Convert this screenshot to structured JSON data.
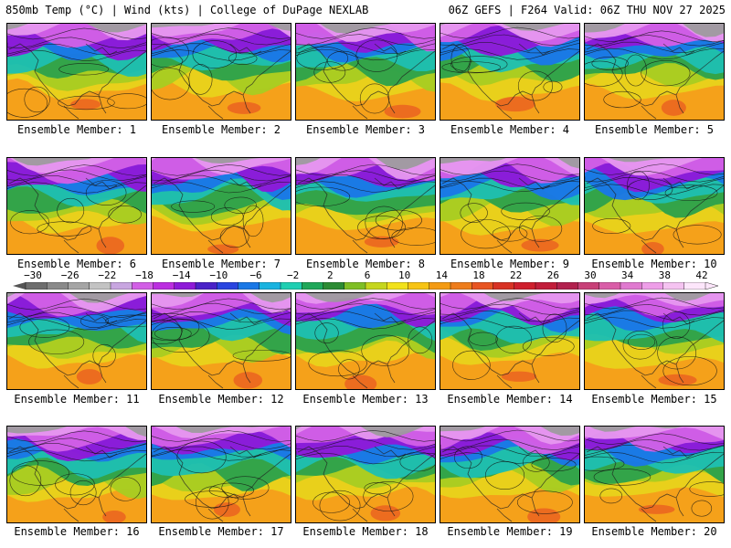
{
  "header": {
    "left_title": "850mb Temp (°C) | Wind (kts) | College of DuPage NEXLAB",
    "right_title": "06Z GEFS | F264 Valid: 06Z THU NOV 27 2025"
  },
  "colorbar": {
    "tick_labels": [
      "−30",
      "−26",
      "−22",
      "−18",
      "−14",
      "−10",
      "−6",
      "−2",
      "2",
      "6",
      "10",
      "14",
      "18",
      "22",
      "26",
      "30",
      "34",
      "38",
      "42"
    ],
    "colors": [
      "#6e6e6e",
      "#8a8a8a",
      "#a5a5a5",
      "#c3c3c3",
      "#c8a6e0",
      "#d25fe6",
      "#bb2ee0",
      "#8e1ad8",
      "#4a22c8",
      "#2a45e0",
      "#1a78e6",
      "#19b3e0",
      "#1fcfb2",
      "#20a85a",
      "#2c8c34",
      "#7fbf25",
      "#c6d61d",
      "#f2e21b",
      "#f7c414",
      "#f49b13",
      "#ee7d1c",
      "#e85522",
      "#d83224",
      "#cf1f2d",
      "#c21d3a",
      "#b2214e",
      "#c84078",
      "#d95ea8",
      "#e07ad0",
      "#ee9ee8",
      "#f5c3f1",
      "#fde6fb"
    ]
  },
  "panels": [
    {
      "caption": "Ensemble Member: 1"
    },
    {
      "caption": "Ensemble Member: 2"
    },
    {
      "caption": "Ensemble Member: 3"
    },
    {
      "caption": "Ensemble Member: 4"
    },
    {
      "caption": "Ensemble Member: 5"
    },
    {
      "caption": "Ensemble Member: 6"
    },
    {
      "caption": "Ensemble Member: 7"
    },
    {
      "caption": "Ensemble Member: 8"
    },
    {
      "caption": "Ensemble Member: 9"
    },
    {
      "caption": "Ensemble Member: 10"
    },
    {
      "caption": "Ensemble Member: 11"
    },
    {
      "caption": "Ensemble Member: 12"
    },
    {
      "caption": "Ensemble Member: 13"
    },
    {
      "caption": "Ensemble Member: 14"
    },
    {
      "caption": "Ensemble Member: 15"
    },
    {
      "caption": "Ensemble Member: 16"
    },
    {
      "caption": "Ensemble Member: 17"
    },
    {
      "caption": "Ensemble Member: 18"
    },
    {
      "caption": "Ensemble Member: 19"
    },
    {
      "caption": "Ensemble Member: 20"
    }
  ]
}
